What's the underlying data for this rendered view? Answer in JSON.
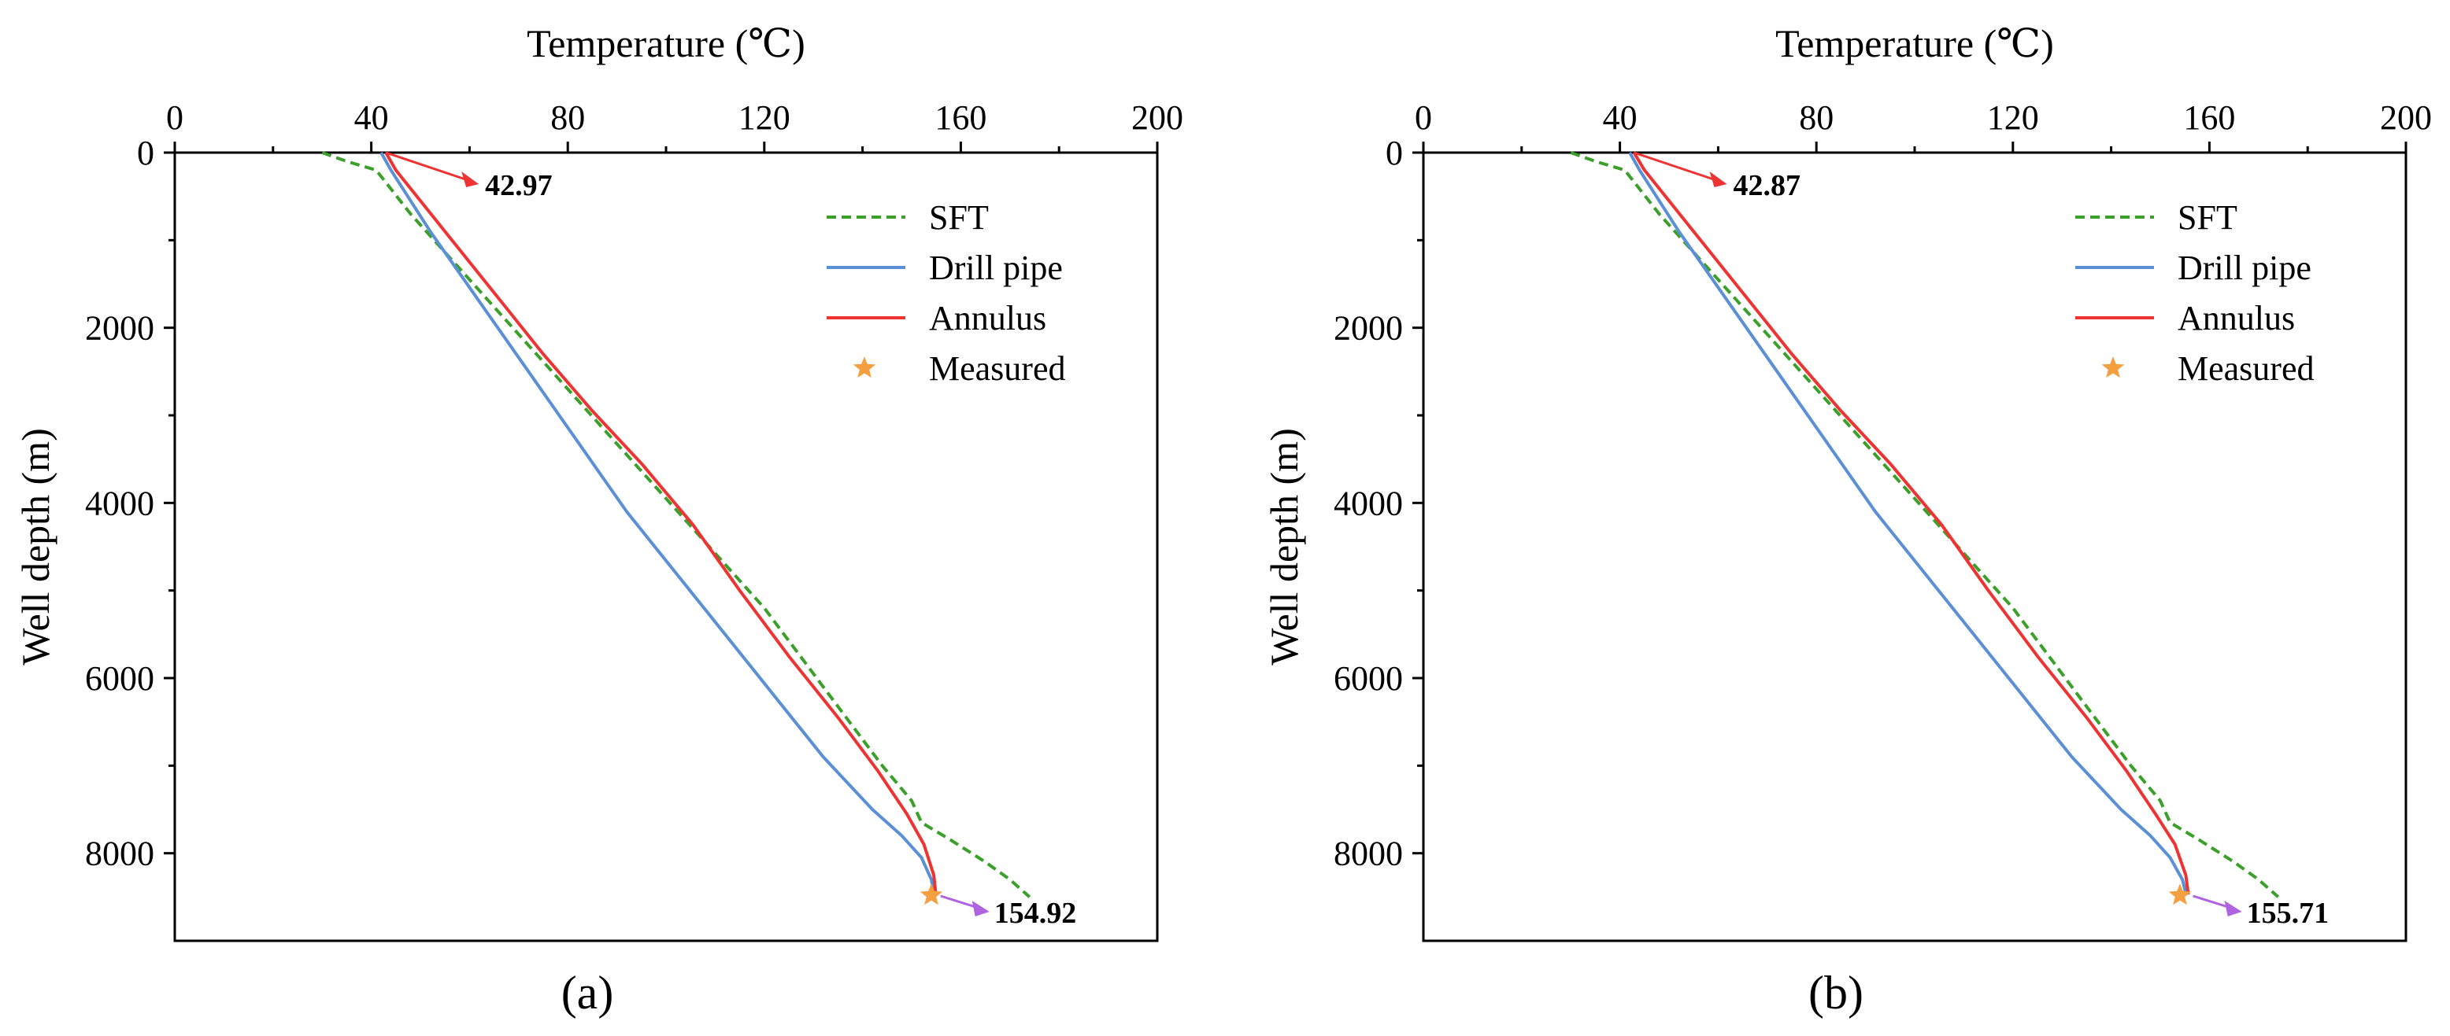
{
  "chart_data": [
    {
      "type": "line",
      "panel_label": "(a)",
      "xlabel": "Temperature (℃)",
      "ylabel": "Well depth (m)",
      "xlim": [
        0,
        200
      ],
      "ylim": [
        9000,
        0
      ],
      "xticks": [
        0,
        40,
        80,
        120,
        160,
        200
      ],
      "yticks": [
        0,
        2000,
        4000,
        6000,
        8000
      ],
      "x_axis_position": "top",
      "grid": false,
      "legend_position": "top-right",
      "series": [
        {
          "name": "SFT",
          "style": "dashed",
          "color": "#3aa02a",
          "x": [
            30,
            35,
            41,
            48,
            56,
            64,
            72,
            80,
            88,
            96,
            104,
            112,
            120,
            128,
            136,
            144,
            150,
            152,
            158,
            165,
            170,
            174
          ],
          "y": [
            0,
            100,
            200,
            700,
            1200,
            1700,
            2200,
            2700,
            3200,
            3700,
            4200,
            4700,
            5200,
            5800,
            6400,
            7000,
            7400,
            7650,
            7850,
            8100,
            8300,
            8500
          ]
        },
        {
          "name": "Drill pipe",
          "style": "solid",
          "color": "#5b8fd6",
          "x": [
            42,
            44,
            52,
            62,
            72,
            82,
            92,
            102,
            112,
            122,
            132,
            142,
            148,
            152,
            154,
            154.6
          ],
          "y": [
            0,
            200,
            900,
            1700,
            2500,
            3300,
            4100,
            4800,
            5500,
            6200,
            6900,
            7500,
            7800,
            8050,
            8300,
            8480
          ]
        },
        {
          "name": "Annulus",
          "style": "solid",
          "color": "#ee3333",
          "x": [
            42.97,
            45,
            55,
            65,
            75,
            85,
            95,
            105.5,
            115,
            125,
            135,
            143,
            149,
            152.5,
            154.5,
            154.92
          ],
          "y": [
            0,
            200,
            900,
            1600,
            2300,
            2950,
            3550,
            4250,
            5000,
            5750,
            6450,
            7050,
            7550,
            7900,
            8250,
            8470
          ]
        },
        {
          "name": "Measured",
          "style": "marker",
          "color": "#f5a040",
          "x": [
            154
          ],
          "y": [
            8480
          ]
        }
      ],
      "annotations": [
        {
          "text": "42.97",
          "color": "#ee3333",
          "x": 42.97,
          "y": 0
        },
        {
          "text": "154.92",
          "color": "#b063e0",
          "x": 154.92,
          "y": 8470
        }
      ]
    },
    {
      "type": "line",
      "panel_label": "(b)",
      "xlabel": "Temperature (℃)",
      "ylabel": "Well depth (m)",
      "xlim": [
        0,
        200
      ],
      "ylim": [
        9000,
        0
      ],
      "xticks": [
        0,
        40,
        80,
        120,
        160,
        200
      ],
      "yticks": [
        0,
        2000,
        4000,
        6000,
        8000
      ],
      "x_axis_position": "top",
      "grid": false,
      "legend_position": "top-right",
      "series": [
        {
          "name": "SFT",
          "style": "dashed",
          "color": "#3aa02a",
          "x": [
            30,
            35,
            41,
            48,
            56,
            64,
            72,
            80,
            88,
            96,
            104,
            112,
            120,
            128,
            136,
            144,
            150,
            152,
            158,
            165,
            170,
            174
          ],
          "y": [
            0,
            100,
            200,
            700,
            1200,
            1700,
            2200,
            2700,
            3200,
            3700,
            4200,
            4700,
            5200,
            5800,
            6400,
            7000,
            7400,
            7650,
            7850,
            8100,
            8300,
            8500
          ]
        },
        {
          "name": "Drill pipe",
          "style": "solid",
          "color": "#5b8fd6",
          "x": [
            42,
            44,
            52,
            62,
            72,
            82,
            92,
            102,
            112,
            122,
            132,
            142,
            148,
            152,
            154.5,
            155.3
          ],
          "y": [
            0,
            200,
            900,
            1700,
            2500,
            3300,
            4100,
            4800,
            5500,
            6200,
            6900,
            7500,
            7800,
            8050,
            8300,
            8480
          ]
        },
        {
          "name": "Annulus",
          "style": "solid",
          "color": "#ee3333",
          "x": [
            42.87,
            45,
            55,
            65,
            75,
            85,
            95,
            105.5,
            115,
            125,
            135,
            143,
            149,
            153,
            155.2,
            155.71
          ],
          "y": [
            0,
            200,
            900,
            1600,
            2300,
            2950,
            3550,
            4250,
            5000,
            5750,
            6450,
            7050,
            7550,
            7900,
            8250,
            8470
          ]
        },
        {
          "name": "Measured",
          "style": "marker",
          "color": "#f5a040",
          "x": [
            154
          ],
          "y": [
            8480
          ]
        }
      ],
      "annotations": [
        {
          "text": "42.87",
          "color": "#ee3333",
          "x": 42.87,
          "y": 0
        },
        {
          "text": "155.71",
          "color": "#b063e0",
          "x": 155.71,
          "y": 8470
        }
      ]
    }
  ]
}
